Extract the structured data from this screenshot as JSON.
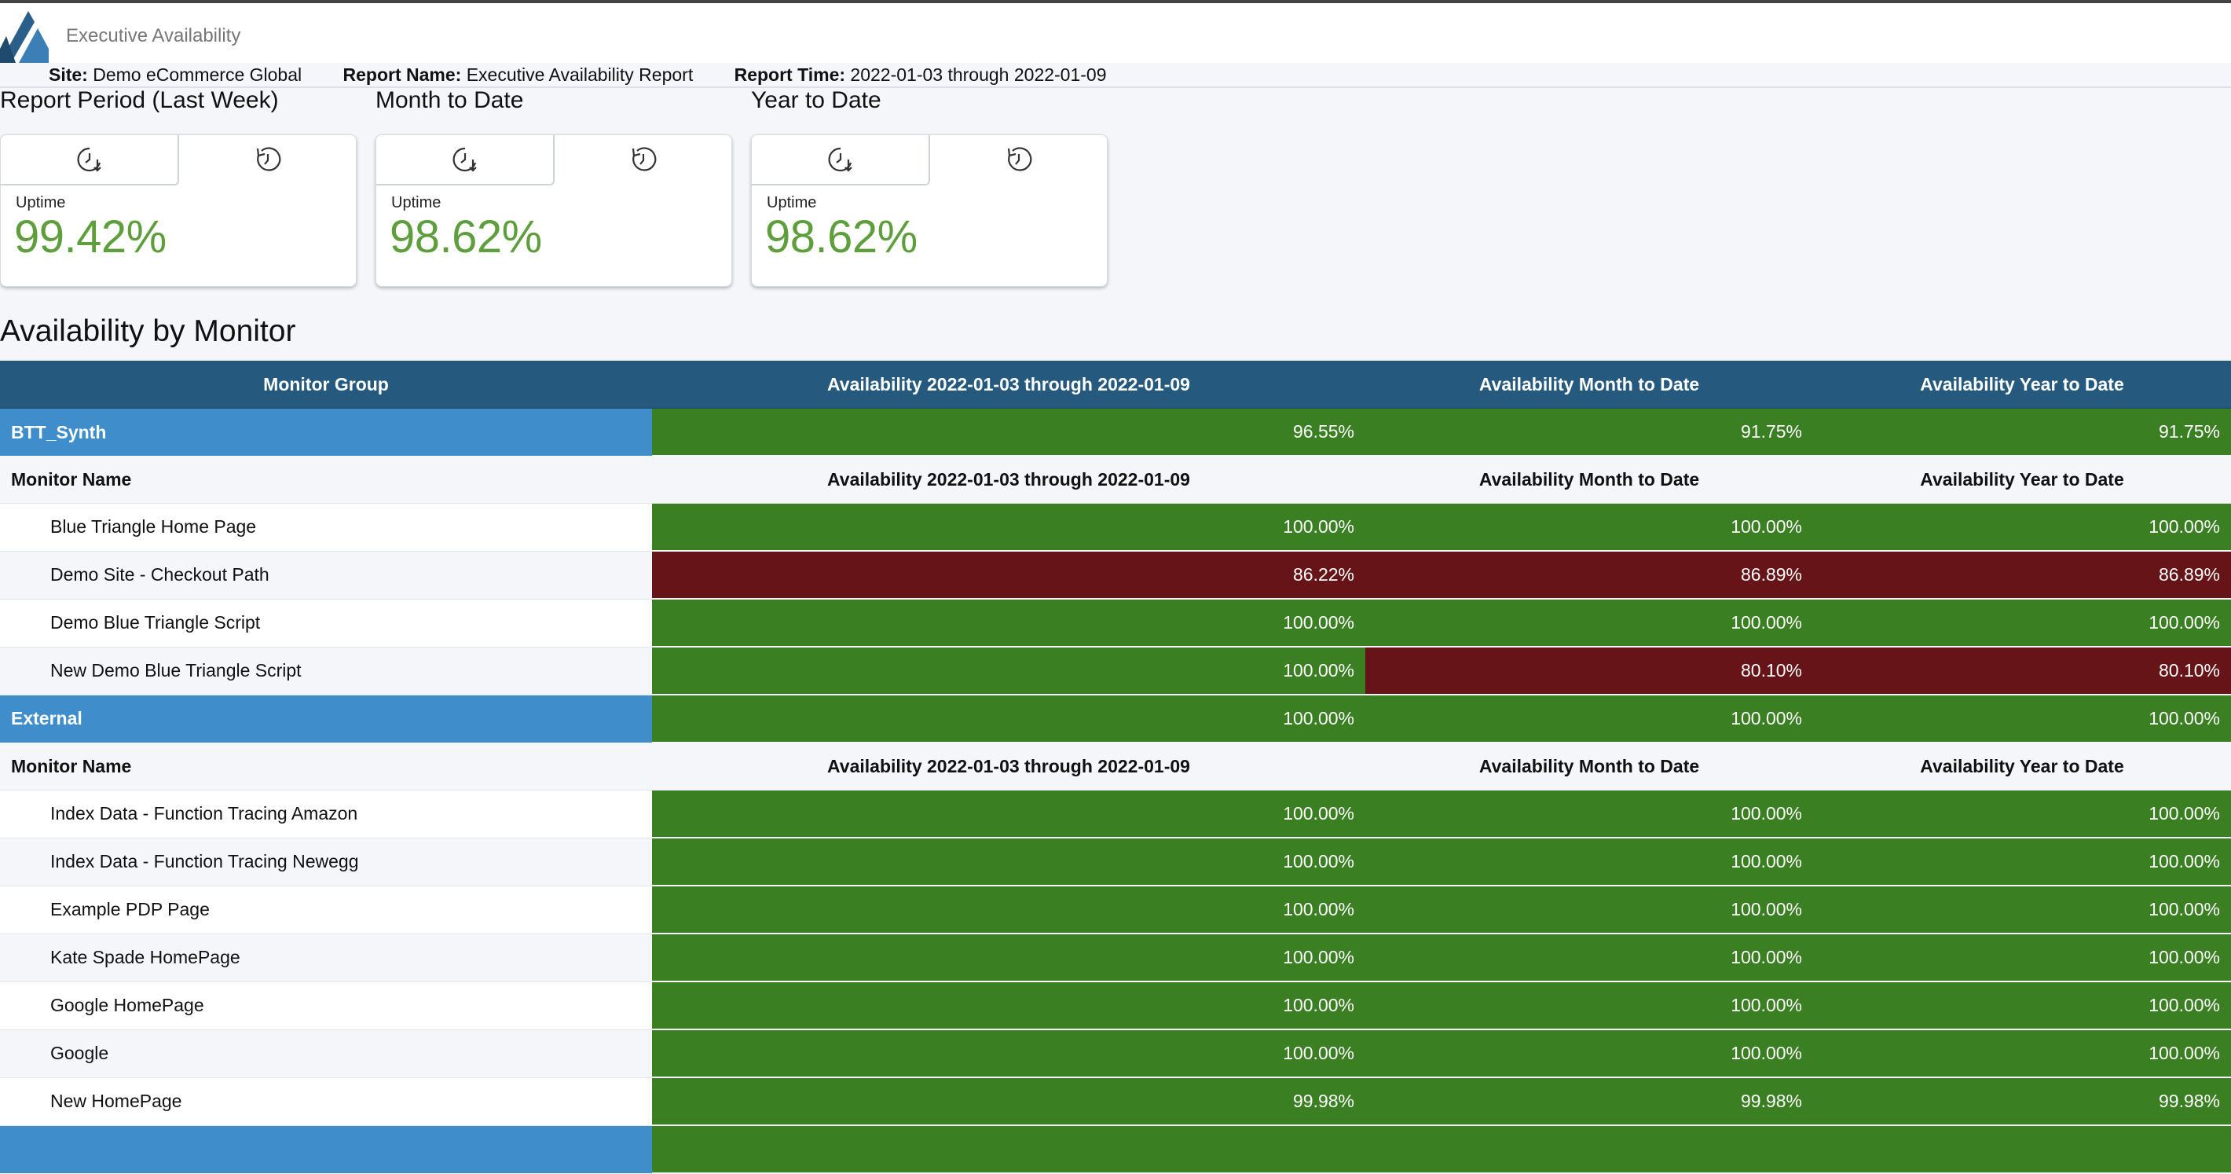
{
  "app": {
    "title": "Executive Availability"
  },
  "meta": {
    "site_label": "Site:",
    "site_value": "Demo eCommerce Global",
    "report_name_label": "Report Name:",
    "report_name_value": "Executive Availability Report",
    "report_time_label": "Report Time:",
    "report_time_value": "2022-01-03 through 2022-01-09"
  },
  "summary": [
    {
      "title": "Report Period (Last Week)",
      "uptime_label": "Uptime",
      "uptime_value": "99.42%"
    },
    {
      "title": "Month to Date",
      "uptime_label": "Uptime",
      "uptime_value": "98.62%"
    },
    {
      "title": "Year to Date",
      "uptime_label": "Uptime",
      "uptime_value": "98.62%"
    }
  ],
  "icons": {
    "tab1": "clock-down-arrow-icon",
    "tab2": "clock-history-icon"
  },
  "colors": {
    "header": "#255a7e",
    "group": "#3f8ecb",
    "good": "#3a7f22",
    "bad": "#661417",
    "uptime": "#5e9e3c"
  },
  "table": {
    "section_title": "Availability by Monitor",
    "headers": [
      "Monitor Group",
      "Availability 2022-01-03 through 2022-01-09",
      "Availability Month to Date",
      "Availability Year to Date"
    ],
    "sub_headers": [
      "Monitor Name",
      "Availability 2022-01-03 through 2022-01-09",
      "Availability Month to Date",
      "Availability Year to Date"
    ],
    "groups": [
      {
        "name": "BTT_Synth",
        "values": [
          "96.55%",
          "91.75%",
          "91.75%"
        ],
        "status": [
          "good",
          "good",
          "good"
        ],
        "monitors": [
          {
            "name": "Blue Triangle Home Page",
            "values": [
              "100.00%",
              "100.00%",
              "100.00%"
            ],
            "status": [
              "good",
              "good",
              "good"
            ]
          },
          {
            "name": "Demo Site - Checkout Path",
            "values": [
              "86.22%",
              "86.89%",
              "86.89%"
            ],
            "status": [
              "bad",
              "bad",
              "bad"
            ]
          },
          {
            "name": "Demo Blue Triangle Script",
            "values": [
              "100.00%",
              "100.00%",
              "100.00%"
            ],
            "status": [
              "good",
              "good",
              "good"
            ]
          },
          {
            "name": "New Demo Blue Triangle Script",
            "values": [
              "100.00%",
              "80.10%",
              "80.10%"
            ],
            "status": [
              "good",
              "bad",
              "bad"
            ]
          }
        ]
      },
      {
        "name": "External",
        "values": [
          "100.00%",
          "100.00%",
          "100.00%"
        ],
        "status": [
          "good",
          "good",
          "good"
        ],
        "monitors": [
          {
            "name": "Index Data - Function Tracing Amazon",
            "values": [
              "100.00%",
              "100.00%",
              "100.00%"
            ],
            "status": [
              "good",
              "good",
              "good"
            ]
          },
          {
            "name": "Index Data - Function Tracing Newegg",
            "values": [
              "100.00%",
              "100.00%",
              "100.00%"
            ],
            "status": [
              "good",
              "good",
              "good"
            ]
          },
          {
            "name": "Example PDP Page",
            "values": [
              "100.00%",
              "100.00%",
              "100.00%"
            ],
            "status": [
              "good",
              "good",
              "good"
            ]
          },
          {
            "name": "Kate Spade HomePage",
            "values": [
              "100.00%",
              "100.00%",
              "100.00%"
            ],
            "status": [
              "good",
              "good",
              "good"
            ]
          },
          {
            "name": "Google HomePage",
            "values": [
              "100.00%",
              "100.00%",
              "100.00%"
            ],
            "status": [
              "good",
              "good",
              "good"
            ]
          },
          {
            "name": "Google",
            "values": [
              "100.00%",
              "100.00%",
              "100.00%"
            ],
            "status": [
              "good",
              "good",
              "good"
            ]
          },
          {
            "name": "New HomePage",
            "values": [
              "99.98%",
              "99.98%",
              "99.98%"
            ],
            "status": [
              "good",
              "good",
              "good"
            ]
          }
        ]
      }
    ]
  }
}
